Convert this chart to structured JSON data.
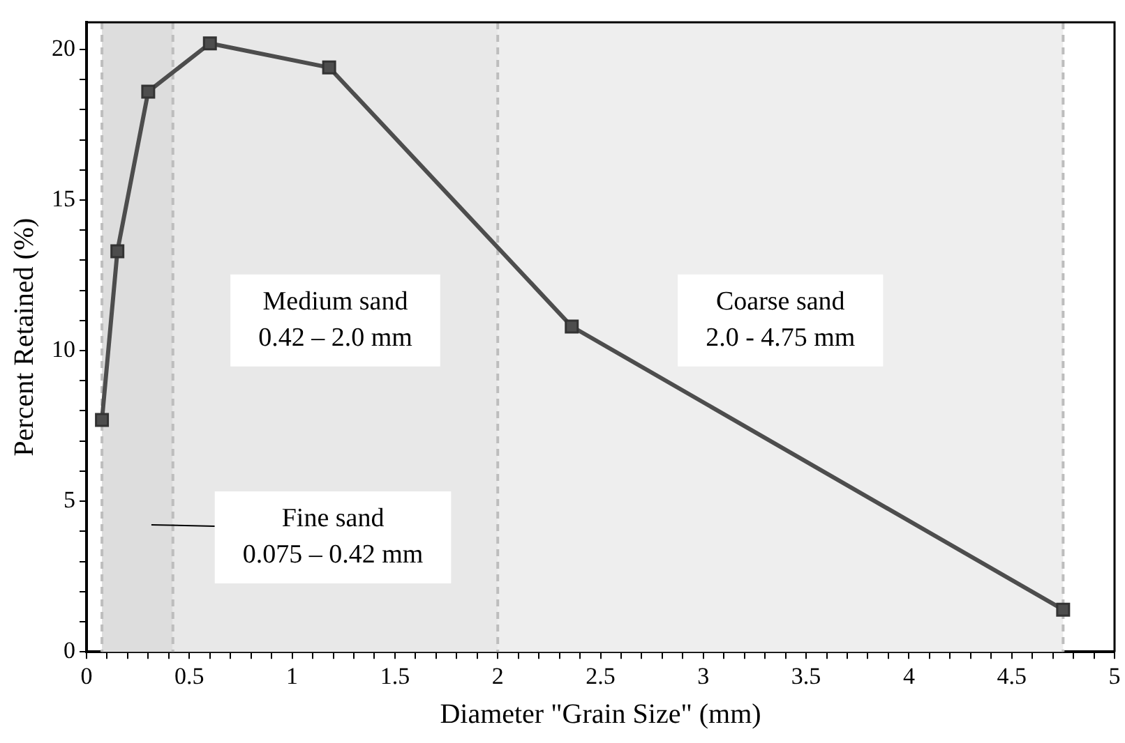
{
  "chart_data": {
    "type": "line",
    "xlabel": "Diameter \"Grain Size\" (mm)",
    "ylabel": "Percent Retained (%)",
    "x": [
      0.075,
      0.15,
      0.3,
      0.6,
      1.18,
      2.36,
      4.75
    ],
    "series": [
      {
        "color": "#4d4d4d",
        "values": [
          7.7,
          13.3,
          18.6,
          20.2,
          19.4,
          10.8,
          1.4
        ]
      }
    ],
    "xlim": [
      0,
      5
    ],
    "xticks": [
      0,
      {
        "value": 0.1,
        "label": null
      },
      {
        "value": 0.2,
        "label": null
      },
      {
        "value": 0.3,
        "label": null
      },
      {
        "value": 0.4,
        "label": null
      },
      0.5,
      {
        "value": 0.6,
        "label": null
      },
      {
        "value": 0.7,
        "label": null
      },
      {
        "value": 0.8,
        "label": null
      },
      {
        "value": 0.9,
        "label": null
      },
      1,
      {
        "value": 1.1,
        "label": null
      },
      {
        "value": 1.2,
        "label": null
      },
      {
        "value": 1.3,
        "label": null
      },
      {
        "value": 1.4,
        "label": null
      },
      1.5,
      {
        "value": 1.6,
        "label": null
      },
      {
        "value": 1.7,
        "label": null
      },
      {
        "value": 1.8,
        "label": null
      },
      {
        "value": 1.9,
        "label": null
      },
      2,
      {
        "value": 2.1,
        "label": null
      },
      {
        "value": 2.2,
        "label": null
      },
      {
        "value": 2.3,
        "label": null
      },
      {
        "value": 2.4,
        "label": null
      },
      2.5,
      {
        "value": 2.6,
        "label": null
      },
      {
        "value": 2.7,
        "label": null
      },
      {
        "value": 2.8,
        "label": null
      },
      {
        "value": 2.9,
        "label": null
      },
      3,
      {
        "value": 3.1,
        "label": null
      },
      {
        "value": 3.2,
        "label": null
      },
      {
        "value": 3.3,
        "label": null
      },
      {
        "value": 3.4,
        "label": null
      },
      3.5,
      {
        "value": 3.6,
        "label": null
      },
      {
        "value": 3.7,
        "label": null
      },
      {
        "value": 3.8,
        "label": null
      },
      {
        "value": 3.9,
        "label": null
      },
      4,
      {
        "value": 4.1,
        "label": null
      },
      {
        "value": 4.2,
        "label": null
      },
      {
        "value": 4.3,
        "label": null
      },
      {
        "value": 4.4,
        "label": null
      },
      4.5,
      {
        "value": 4.6,
        "label": null
      },
      {
        "value": 4.7,
        "label": null
      },
      {
        "value": 4.8,
        "label": null
      },
      {
        "value": 4.9,
        "label": null
      },
      5
    ],
    "ylim": [
      0,
      20.9
    ],
    "yticks": [
      0,
      {
        "value": 1,
        "label": null
      },
      {
        "value": 2,
        "label": null
      },
      {
        "value": 3,
        "label": null
      },
      {
        "value": 4,
        "label": null
      },
      5,
      {
        "value": 6,
        "label": null
      },
      {
        "value": 7,
        "label": null
      },
      {
        "value": 8,
        "label": null
      },
      {
        "value": 9,
        "label": null
      },
      10,
      {
        "value": 11,
        "label": null
      },
      {
        "value": 12,
        "label": null
      },
      {
        "value": 13,
        "label": null
      },
      {
        "value": 14,
        "label": null
      },
      15,
      {
        "value": 16,
        "label": null
      },
      {
        "value": 17,
        "label": null
      },
      {
        "value": 18,
        "label": null
      },
      {
        "value": 19,
        "label": null
      },
      20
    ],
    "bands": [
      {
        "axis": "x",
        "from": 0.075,
        "to": 0.42,
        "label": "Fine sand\n0.075 – 0.42 mm",
        "color": "#dddddd"
      },
      {
        "axis": "x",
        "from": 0.42,
        "to": 2.0,
        "label": "Medium sand\n0.42 – 2.0 mm",
        "color": "#e8e8e8"
      },
      {
        "axis": "x",
        "from": 2.0,
        "to": 4.75,
        "label": "Coarse sand\n2.0 - 4.75 mm",
        "color": "#eeeeee"
      }
    ],
    "ref_lines": [
      {
        "axis": "x",
        "value": 0.075,
        "color": "#bdbdbd",
        "line_style": "dashed"
      },
      {
        "axis": "x",
        "value": 0.42,
        "color": "#bdbdbd",
        "line_style": "dashed"
      },
      {
        "axis": "x",
        "value": 2.0,
        "color": "#bdbdbd",
        "line_style": "dashed"
      },
      {
        "axis": "x",
        "value": 4.75,
        "color": "#bdbdbd",
        "line_style": "dashed"
      }
    ],
    "grid": false,
    "legend": false,
    "marker": "square",
    "line_style": "solid"
  }
}
